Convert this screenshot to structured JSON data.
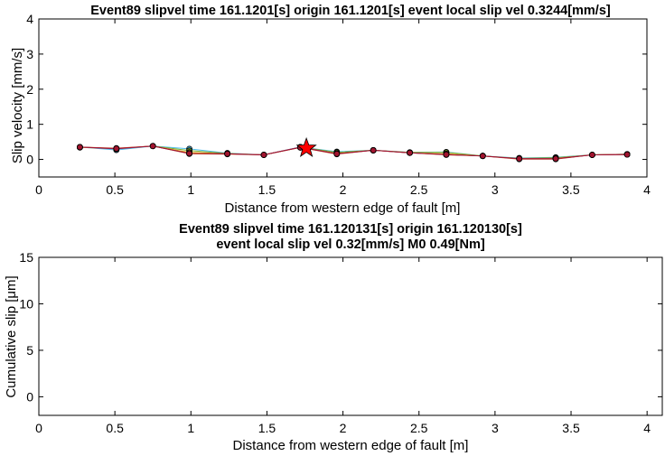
{
  "chart_data": [
    {
      "type": "line",
      "title": "Event89 slipvel time 161.1201[s] origin 161.1201[s] event local slip vel 0.3244[mm/s]",
      "xlabel": "Distance from western edge of fault [m]",
      "ylabel": "Slip velocity [mm/s]",
      "xlim": [
        0,
        4
      ],
      "ylim": [
        -0.5,
        4
      ],
      "xticks": [
        "0",
        "0.5",
        "1",
        "1.5",
        "2",
        "2.5",
        "3",
        "3.5",
        "4"
      ],
      "yticks": [
        "0",
        "1",
        "2",
        "3",
        "4"
      ],
      "grid": false,
      "x": [
        0.27,
        0.51,
        0.75,
        0.99,
        1.24,
        1.48,
        1.72,
        1.96,
        2.2,
        2.44,
        2.68,
        2.92,
        3.16,
        3.4,
        3.64,
        3.87
      ],
      "series": [
        {
          "color": "#4dbeee",
          "values": [
            0.35,
            0.27,
            0.38,
            0.3,
            0.18,
            0.13,
            0.35,
            0.22,
            0.26,
            0.2,
            0.21,
            0.1,
            0.04,
            0.06,
            0.13,
            0.15
          ]
        },
        {
          "color": "#77ac30",
          "values": [
            0.35,
            0.3,
            0.38,
            0.25,
            0.17,
            0.13,
            0.35,
            0.2,
            0.26,
            0.2,
            0.2,
            0.1,
            0.03,
            0.05,
            0.13,
            0.15
          ]
        },
        {
          "color": "#edb120",
          "values": [
            0.34,
            0.31,
            0.38,
            0.2,
            0.16,
            0.13,
            0.34,
            0.17,
            0.26,
            0.19,
            0.16,
            0.1,
            0.02,
            0.03,
            0.13,
            0.15
          ]
        },
        {
          "color": "#d95319",
          "values": [
            0.35,
            0.32,
            0.38,
            0.16,
            0.15,
            0.13,
            0.34,
            0.15,
            0.26,
            0.19,
            0.13,
            0.1,
            0.01,
            0.01,
            0.13,
            0.14
          ]
        },
        {
          "color": "#7e2f8e",
          "values": [
            0.35,
            0.3,
            0.38,
            0.17,
            0.16,
            0.13,
            0.35,
            0.16,
            0.26,
            0.19,
            0.14,
            0.1,
            0.02,
            0.02,
            0.13,
            0.14
          ]
        },
        {
          "color": "#a2142f",
          "values": [
            0.35,
            0.31,
            0.38,
            0.17,
            0.16,
            0.13,
            0.34,
            0.16,
            0.26,
            0.19,
            0.14,
            0.1,
            0.02,
            0.02,
            0.13,
            0.14
          ]
        }
      ],
      "star": {
        "x": 1.76,
        "y": 0.32,
        "color": "#ff0000"
      }
    },
    {
      "type": "line",
      "title": "Event89 slipvel time 161.120131[s] origin 161.120130[s]",
      "subtitle": "event local slip vel 0.32[mm/s] M0 0.49[Nm]",
      "xlabel": "Distance from western edge of fault [m]",
      "ylabel": "Cumulative slip [μm]",
      "xlim": [
        0,
        4.1
      ],
      "ylim": [
        -2,
        15
      ],
      "xticks": [
        "0",
        "0.5",
        "1",
        "1.5",
        "2",
        "2.5",
        "3",
        "3.5",
        "4"
      ],
      "yticks": [
        "0",
        "5",
        "10",
        "15"
      ],
      "grid": false,
      "series": []
    }
  ]
}
